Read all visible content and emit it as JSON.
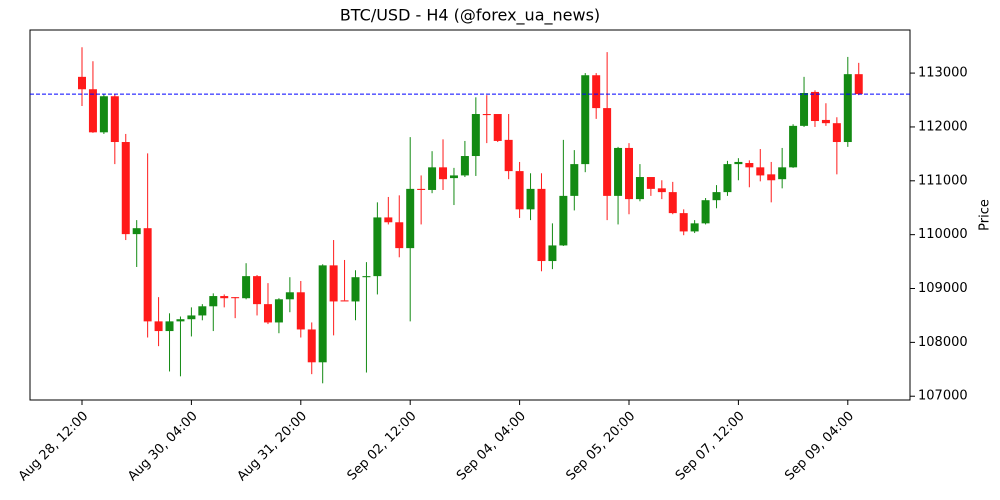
{
  "chart_data": {
    "type": "candlestick",
    "title": "BTC/USD - H4 (@forex_ua_news)",
    "y_label": "Price",
    "categories": [
      "Aug 28, 12:00",
      null,
      null,
      null,
      null,
      null,
      null,
      null,
      null,
      null,
      "Aug 30, 04:00",
      null,
      null,
      null,
      null,
      null,
      null,
      null,
      null,
      null,
      "Aug 31, 20:00",
      null,
      null,
      null,
      null,
      null,
      null,
      null,
      null,
      null,
      "Sep 02, 12:00",
      null,
      null,
      null,
      null,
      null,
      null,
      null,
      null,
      null,
      "Sep 04, 04:00",
      null,
      null,
      null,
      null,
      null,
      null,
      null,
      null,
      null,
      "Sep 05, 20:00",
      null,
      null,
      null,
      null,
      null,
      null,
      null,
      null,
      null,
      "Sep 07, 12:00",
      null,
      null,
      null,
      null,
      null,
      null,
      null,
      null,
      null,
      "Sep 09, 04:00",
      null
    ],
    "open": [
      112930,
      112700,
      111900,
      112570,
      111720,
      110010,
      110120,
      108390,
      108210,
      108390,
      108430,
      108500,
      108670,
      108860,
      108840,
      108820,
      109230,
      108710,
      108370,
      108800,
      108930,
      108240,
      107630,
      109430,
      108780,
      108760,
      109210,
      109230,
      110320,
      110230,
      109750,
      110850,
      110830,
      111250,
      111050,
      111100,
      111460,
      112240,
      112240,
      111760,
      111180,
      110470,
      110850,
      109510,
      109800,
      110720,
      111310,
      112960,
      112350,
      110720,
      111610,
      110660,
      111070,
      110860,
      110790,
      110400,
      110060,
      110210,
      110640,
      110790,
      111310,
      111330,
      111250,
      111120,
      111030,
      111250,
      112020,
      112650,
      112130,
      112070,
      111720,
      112980
    ],
    "high": [
      113480,
      113220,
      112610,
      112610,
      111870,
      110270,
      111510,
      108840,
      108540,
      108480,
      108650,
      108710,
      108910,
      108890,
      108840,
      109470,
      109250,
      109100,
      108820,
      109210,
      109140,
      108370,
      109450,
      109900,
      109530,
      109340,
      109490,
      110600,
      110700,
      110730,
      111810,
      111100,
      111550,
      111770,
      111240,
      111740,
      112550,
      112590,
      112220,
      112240,
      111350,
      111140,
      111140,
      110210,
      111760,
      111570,
      113000,
      113000,
      113390,
      111630,
      111700,
      111310,
      111050,
      111010,
      110980,
      110470,
      110270,
      110680,
      110920,
      111370,
      111420,
      111380,
      111590,
      111350,
      111610,
      112050,
      112930,
      112680,
      112440,
      112180,
      113300,
      113190
    ],
    "low": [
      112390,
      111890,
      111870,
      111310,
      109900,
      109400,
      108090,
      107930,
      107460,
      107370,
      108110,
      108410,
      108210,
      108650,
      108450,
      108800,
      108500,
      108340,
      108170,
      108560,
      108090,
      107410,
      107240,
      108130,
      108780,
      108410,
      107440,
      108890,
      110190,
      109580,
      108390,
      110190,
      110770,
      110830,
      110550,
      111070,
      111090,
      111700,
      111720,
      111030,
      110310,
      110270,
      109320,
      109360,
      109790,
      110450,
      111160,
      112150,
      110270,
      110190,
      110380,
      110620,
      110720,
      110660,
      110380,
      109990,
      110030,
      110190,
      110490,
      110720,
      111010,
      110880,
      110990,
      110600,
      110860,
      111240,
      112000,
      112000,
      112020,
      111120,
      111630,
      112590
    ],
    "close": [
      112700,
      111900,
      112570,
      111720,
      110010,
      110120,
      108390,
      108210,
      108390,
      108430,
      108500,
      108670,
      108860,
      108820,
      108820,
      109230,
      108710,
      108370,
      108800,
      108930,
      108240,
      107630,
      109430,
      108760,
      108760,
      109210,
      109230,
      110320,
      110230,
      109750,
      110850,
      110830,
      111250,
      111030,
      111100,
      111460,
      112240,
      112220,
      111740,
      111180,
      110470,
      110850,
      109510,
      109800,
      110720,
      111310,
      112960,
      112350,
      110720,
      111610,
      110660,
      111070,
      110850,
      110790,
      110400,
      110060,
      110210,
      110640,
      110790,
      111310,
      111350,
      111250,
      111100,
      111010,
      111250,
      112020,
      112630,
      112110,
      112070,
      111720,
      112980,
      112610
    ],
    "up_color": "#138a13",
    "down_color": "#ff1a1a",
    "hline": {
      "value": 112610,
      "color": "#0000ff"
    },
    "ylim": [
      106930,
      113800
    ],
    "yticks": [
      107000,
      108000,
      109000,
      110000,
      111000,
      112000,
      113000
    ]
  }
}
